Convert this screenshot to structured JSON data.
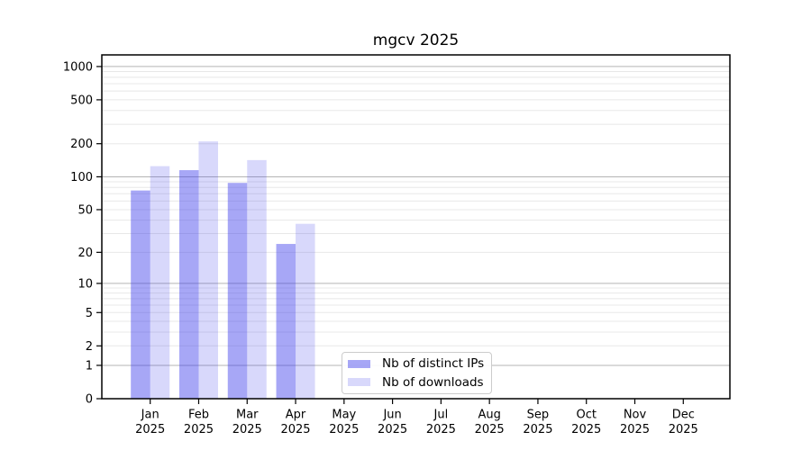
{
  "chart_data": {
    "type": "bar",
    "title": "mgcv 2025",
    "year_label": "2025",
    "months": [
      "Jan",
      "Feb",
      "Mar",
      "Apr",
      "May",
      "Jun",
      "Jul",
      "Aug",
      "Sep",
      "Oct",
      "Nov",
      "Dec"
    ],
    "series": [
      {
        "name": "Nb of distinct IPs",
        "color": "rgba(60,60,235,0.45)",
        "values": [
          75,
          115,
          88,
          24,
          null,
          null,
          null,
          null,
          null,
          null,
          null,
          null
        ]
      },
      {
        "name": "Nb of downloads",
        "color": "rgba(60,60,235,0.20)",
        "values": [
          125,
          210,
          142,
          37,
          null,
          null,
          null,
          null,
          null,
          null,
          null,
          null
        ]
      }
    ],
    "y_scale": "log1p",
    "y_ticks": [
      0,
      1,
      2,
      5,
      10,
      20,
      50,
      100,
      200,
      500,
      1000
    ],
    "y_major_grid": [
      1,
      10,
      100,
      1000
    ],
    "ylim": [
      0,
      1274
    ],
    "grid": "both",
    "legend_position": "lower center inside"
  },
  "colors": {
    "bar_ips": "rgba(60,60,235,0.45)",
    "bar_downloads": "rgba(60,60,235,0.20)",
    "major_grid": "#b4b4b4",
    "minor_grid": "#e8e8e8",
    "spine": "#000000",
    "tick_text": "#000000",
    "legend_border": "#cccccc"
  }
}
